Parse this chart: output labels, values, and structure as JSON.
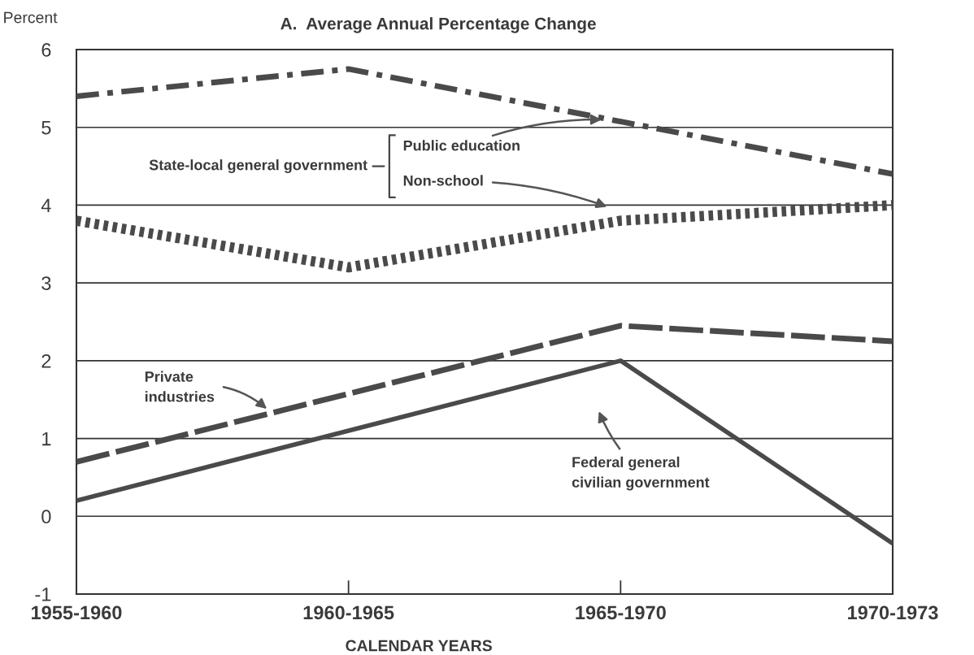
{
  "chart_data": {
    "type": "line",
    "title": "A.  Average Annual Percentage Change",
    "ylabel": "Percent",
    "xlabel": "CALENDAR YEARS",
    "categories": [
      "1955-1960",
      "1960-1965",
      "1965-1970",
      "1970-1973"
    ],
    "series": [
      {
        "name": "Public education",
        "color": "#4a4a4a",
        "line_style": "dashdot",
        "values": [
          5.4,
          5.75,
          null,
          4.4
        ]
      },
      {
        "name": "Non-school",
        "color": "#4a4a4a",
        "line_style": "dotted",
        "values": [
          3.8,
          3.2,
          3.8,
          4.0
        ]
      },
      {
        "name": "Private\nindustries",
        "color": "#4a4a4a",
        "line_style": "dashed",
        "values": [
          0.7,
          null,
          2.45,
          2.25
        ]
      },
      {
        "name": "Federal general\ncivilian government",
        "color": "#4a4a4a",
        "line_style": "solid",
        "values": [
          0.2,
          null,
          2.0,
          -0.35
        ]
      }
    ],
    "annotations": [
      "State-local general government"
    ],
    "ylim": [
      -1,
      6
    ],
    "yticks": [
      -1,
      0,
      1,
      2,
      3,
      4,
      5,
      6
    ],
    "grid": "y",
    "legend": false,
    "marker": "none"
  }
}
